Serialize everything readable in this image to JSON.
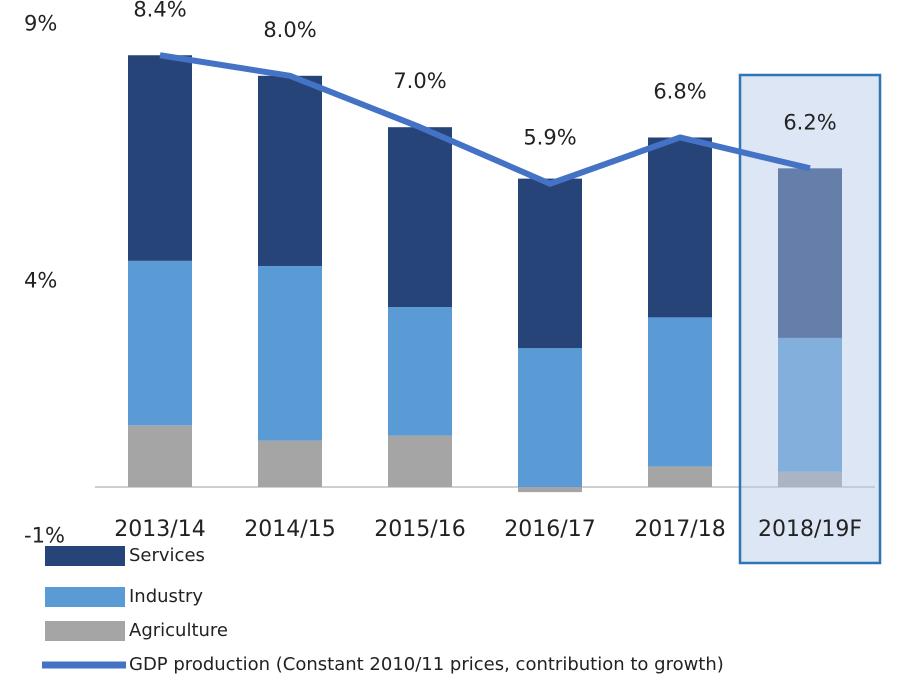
{
  "chart_data": {
    "type": "bar",
    "stacked": true,
    "categories": [
      "2013/14",
      "2014/15",
      "2015/16",
      "2016/17",
      "2017/18",
      "2018/19F"
    ],
    "series": [
      {
        "name": "Services",
        "color": "#264478",
        "values": [
          4.0,
          3.7,
          3.5,
          3.3,
          3.5,
          3.3
        ]
      },
      {
        "name": "Industry",
        "color": "#5b9bd5",
        "values": [
          3.2,
          3.4,
          2.5,
          2.7,
          2.9,
          2.6
        ]
      },
      {
        "name": "Agriculture",
        "color": "#a5a5a5",
        "values": [
          1.2,
          0.9,
          1.0,
          -0.1,
          0.4,
          0.3
        ]
      },
      {
        "name": "GDP production (Constant 2010/11 prices, contribution to growth)",
        "type": "line",
        "color": "#4472c4",
        "values": [
          8.4,
          8.0,
          7.0,
          5.9,
          6.8,
          6.2
        ],
        "value_labels": [
          "8.4%",
          "8.0%",
          "7.0%",
          "5.9%",
          "6.8%",
          "6.2%"
        ]
      }
    ],
    "ylim": [
      -1,
      9
    ],
    "yticks": [
      {
        "value": 9,
        "label": "9%"
      },
      {
        "value": 4,
        "label": "4%"
      },
      {
        "value": -1,
        "label": "-1%"
      }
    ],
    "highlight_index": 5,
    "grid": false
  }
}
